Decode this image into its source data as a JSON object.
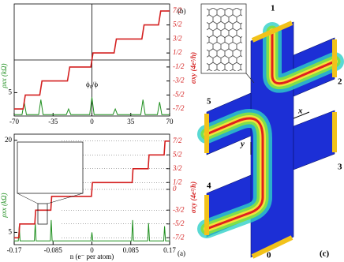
{
  "chart_data": [
    {
      "type": "line",
      "panel": "(b)",
      "xlabel": "ϕ₀/ϕ",
      "ylabel": "ρxx (kΩ)",
      "y2label": "σxy (4e²/h)",
      "xlim": [
        -70,
        70
      ],
      "xticks": [
        -70,
        -35,
        0,
        35,
        70
      ],
      "ylim": [
        0,
        24
      ],
      "yticks": [
        5
      ],
      "y2lim": [
        -4,
        4
      ],
      "y2ticks": [
        {
          "value": 3.5,
          "label": "7/2"
        },
        {
          "value": 2.5,
          "label": "5/2"
        },
        {
          "value": 1.5,
          "label": "3/2"
        },
        {
          "value": 0.5,
          "label": "1/2"
        },
        {
          "value": -0.5,
          "label": "-1/2"
        },
        {
          "value": -1.5,
          "label": "-3/2"
        },
        {
          "value": -2.5,
          "label": "-5/2"
        },
        {
          "value": -3.5,
          "label": "-7/2"
        }
      ],
      "grid": false,
      "ref_lines": {
        "x": 0,
        "y2": 0
      },
      "series": [
        {
          "color": "#1f8f1f",
          "axis": "y",
          "x": [
            -70,
            -63,
            -61,
            -59,
            -48,
            -46,
            -44,
            -23,
            -21,
            -19,
            -2,
            0,
            2,
            19,
            21,
            23,
            44,
            46,
            48,
            59,
            61,
            63,
            70
          ],
          "values": [
            0.3,
            0.3,
            3,
            0.3,
            0.3,
            3.5,
            0.3,
            0.3,
            1.5,
            0.3,
            0.3,
            4,
            0.3,
            0.3,
            1.5,
            0.3,
            0.3,
            3.5,
            0.3,
            0.3,
            3,
            0.3,
            0.3
          ]
        },
        {
          "color": "#d42020",
          "axis": "y2",
          "x": [
            -70,
            -62,
            -60,
            -47,
            -45,
            -22,
            -20,
            -1,
            1,
            20,
            22,
            45,
            47,
            60,
            62,
            70
          ],
          "values": [
            -3.5,
            -3.5,
            -2.5,
            -2.5,
            -1.5,
            -1.5,
            -0.5,
            -0.5,
            0.5,
            0.5,
            1.5,
            1.5,
            2.5,
            2.5,
            3.5,
            3.5
          ]
        }
      ]
    },
    {
      "type": "line",
      "panel": "(a)",
      "xlabel": "n (e⁻ per atom)",
      "ylabel": "ρxx (kΩ)",
      "y2label": "σxy (4e²/h)",
      "xlim": [
        -0.17,
        0.17
      ],
      "xticks": [
        -0.17,
        -0.085,
        0,
        0.085,
        0.17
      ],
      "ylim": [
        3,
        21
      ],
      "yticks": [
        5,
        20
      ],
      "y2lim": [
        -4,
        4
      ],
      "y2ticks": [
        {
          "value": 3.5,
          "label": "7/2"
        },
        {
          "value": 2.5,
          "label": "5/2"
        },
        {
          "value": 1.5,
          "label": "3/2"
        },
        {
          "value": 0.5,
          "label": "1/2"
        },
        0,
        {
          "value": -1.5,
          "label": "-3/2"
        },
        {
          "value": -2.5,
          "label": "-5/2"
        },
        {
          "value": -3.5,
          "label": "-7/2"
        }
      ],
      "grid": true,
      "series": [
        {
          "color": "#1f8f1f",
          "axis": "y",
          "x": [
            -0.17,
            -0.161,
            -0.159,
            -0.157,
            -0.126,
            -0.124,
            -0.122,
            -0.091,
            -0.089,
            -0.087,
            -0.002,
            0,
            0.002,
            0.087,
            0.089,
            0.091,
            0.122,
            0.124,
            0.126,
            0.157,
            0.159,
            0.161,
            0.17
          ],
          "values": [
            3.6,
            3.6,
            6,
            3.6,
            3.6,
            6.5,
            3.6,
            3.6,
            7,
            3.6,
            3.6,
            5,
            3.6,
            3.6,
            7,
            3.6,
            3.6,
            6.5,
            3.6,
            3.6,
            6,
            3.6,
            3.6
          ]
        },
        {
          "color": "#d42020",
          "axis": "y2",
          "x": [
            -0.17,
            -0.16,
            -0.158,
            -0.125,
            -0.123,
            -0.09,
            -0.088,
            -0.001,
            0.001,
            0.088,
            0.09,
            0.123,
            0.125,
            0.158,
            0.16,
            0.17
          ],
          "values": [
            -3.5,
            -3.5,
            -2.5,
            -2.5,
            -1.5,
            -1.5,
            -0.5,
            -0.5,
            0.5,
            0.5,
            1.5,
            1.5,
            2.5,
            2.5,
            3.5,
            3.5
          ]
        }
      ]
    }
  ],
  "diagram": {
    "panel": "(c)",
    "contacts": [
      "1",
      "2",
      "3",
      "4",
      "5",
      "0"
    ],
    "axes": [
      "x",
      "y"
    ]
  }
}
